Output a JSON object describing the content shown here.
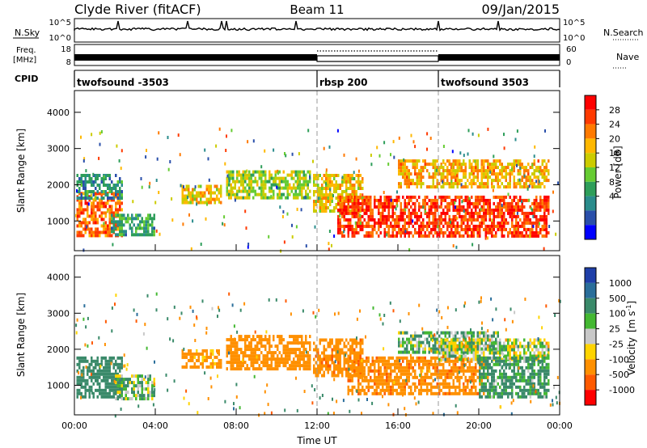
{
  "header": {
    "station": "Clyde River (fitACF)",
    "beam": "Beam 11",
    "date": "09/Jan/2015"
  },
  "small_panels": {
    "nsky_label": "N.Sky",
    "nsky_ticks": [
      "10^5",
      "10^0"
    ],
    "nsky_right_ticks": [
      "10^5",
      "10^0"
    ],
    "nsearch_label": "N.Search",
    "freq_label": "Freq.",
    "freq_unit": "[MHz]",
    "freq_ticks": [
      "18",
      "8"
    ],
    "nave_ticks": [
      "60",
      "0"
    ],
    "nave_label": "Nave",
    "cpid_label": "CPID",
    "cpid_segments": [
      {
        "label": "twofsound -3503",
        "start_hour": 0,
        "end_hour": 12
      },
      {
        "label": "rbsp 200",
        "start_hour": 12,
        "end_hour": 18
      },
      {
        "label": "twofsound 3503",
        "start_hour": 18,
        "end_hour": 24
      }
    ]
  },
  "power_colorbar": {
    "title": "Power [dB]",
    "ticks": [
      "28",
      "24",
      "20",
      "16",
      "12",
      "8",
      "4"
    ],
    "colors": [
      "#ff0000",
      "#ff3a00",
      "#ff7a00",
      "#ffb800",
      "#cccc00",
      "#66cc33",
      "#2e9e5a",
      "#2a8c8c",
      "#2a4faa",
      "#0000ff"
    ]
  },
  "velocity_colorbar": {
    "title": "Velocity",
    "unit": "[m s",
    "unit_sup": "-1",
    "unit_close": "]",
    "ticks": [
      "1000",
      "500",
      "100",
      "25",
      "-25",
      "-100",
      "-500",
      "-1000"
    ],
    "colors": [
      "#1f3fa8",
      "#2a6e9a",
      "#3a8a6a",
      "#44b832",
      "#c8c8c8",
      "#ffd400",
      "#ff9000",
      "#ff5a00",
      "#ff0000"
    ]
  },
  "chart_data": [
    {
      "type": "heatmap",
      "title": "Power",
      "xlabel": "Time UT",
      "ylabel": "Slant Range [km]",
      "xlim_hours": [
        0,
        24
      ],
      "ylim": [
        180,
        4600
      ],
      "x_ticks": [
        "00:00",
        "04:00",
        "08:00",
        "12:00",
        "16:00",
        "20:00",
        "00:00"
      ],
      "y_ticks": [
        1000,
        2000,
        3000,
        4000
      ],
      "colorbar_label": "Power [dB]",
      "regions": [
        {
          "t0": 0.1,
          "t1": 2.4,
          "r0": 600,
          "r1": 1800,
          "value_db": 26
        },
        {
          "t0": 0.1,
          "t1": 2.4,
          "r0": 1600,
          "r1": 2300,
          "value_db": 8
        },
        {
          "t0": 1.8,
          "t1": 4.0,
          "r0": 600,
          "r1": 1200,
          "value_db": 10
        },
        {
          "t0": 5.3,
          "t1": 7.3,
          "r0": 1500,
          "r1": 2000,
          "value_db": 20
        },
        {
          "t0": 7.5,
          "t1": 11.7,
          "r0": 1600,
          "r1": 2400,
          "value_db": 16
        },
        {
          "t0": 11.8,
          "t1": 14.3,
          "r0": 1300,
          "r1": 2300,
          "value_db": 20
        },
        {
          "t0": 13.0,
          "t1": 23.5,
          "r0": 550,
          "r1": 1700,
          "value_db": 29
        },
        {
          "t0": 16.0,
          "t1": 23.5,
          "r0": 1900,
          "r1": 2700,
          "value_db": 22
        }
      ]
    },
    {
      "type": "heatmap",
      "title": "Velocity",
      "xlabel": "Time UT",
      "ylabel": "Slant Range [km]",
      "xlim_hours": [
        0,
        24
      ],
      "ylim": [
        180,
        4600
      ],
      "x_ticks": [
        "00:00",
        "04:00",
        "08:00",
        "12:00",
        "16:00",
        "20:00",
        "00:00"
      ],
      "y_ticks": [
        1000,
        2000,
        3000,
        4000
      ],
      "colorbar_label": "Velocity [m s-1]",
      "regions": [
        {
          "t0": 0.1,
          "t1": 2.4,
          "r0": 700,
          "r1": 1800,
          "value_ms": 300
        },
        {
          "t0": 2.0,
          "t1": 4.0,
          "r0": 600,
          "r1": 1300,
          "value_ms": 60
        },
        {
          "t0": 5.3,
          "t1": 7.3,
          "r0": 1500,
          "r1": 2000,
          "value_ms": -200
        },
        {
          "t0": 7.5,
          "t1": 11.7,
          "r0": 1500,
          "r1": 2400,
          "value_ms": -300
        },
        {
          "t0": 11.8,
          "t1": 14.3,
          "r0": 1300,
          "r1": 2300,
          "value_ms": -400
        },
        {
          "t0": 13.5,
          "t1": 20.5,
          "r0": 800,
          "r1": 1800,
          "value_ms": -400
        },
        {
          "t0": 16.0,
          "t1": 21.0,
          "r0": 1900,
          "r1": 2500,
          "value_ms": 80
        },
        {
          "t0": 18.0,
          "t1": 23.5,
          "r0": 1700,
          "r1": 2300,
          "value_ms": 0
        },
        {
          "t0": 20.0,
          "t1": 23.5,
          "r0": 700,
          "r1": 1800,
          "value_ms": 150
        }
      ]
    }
  ]
}
